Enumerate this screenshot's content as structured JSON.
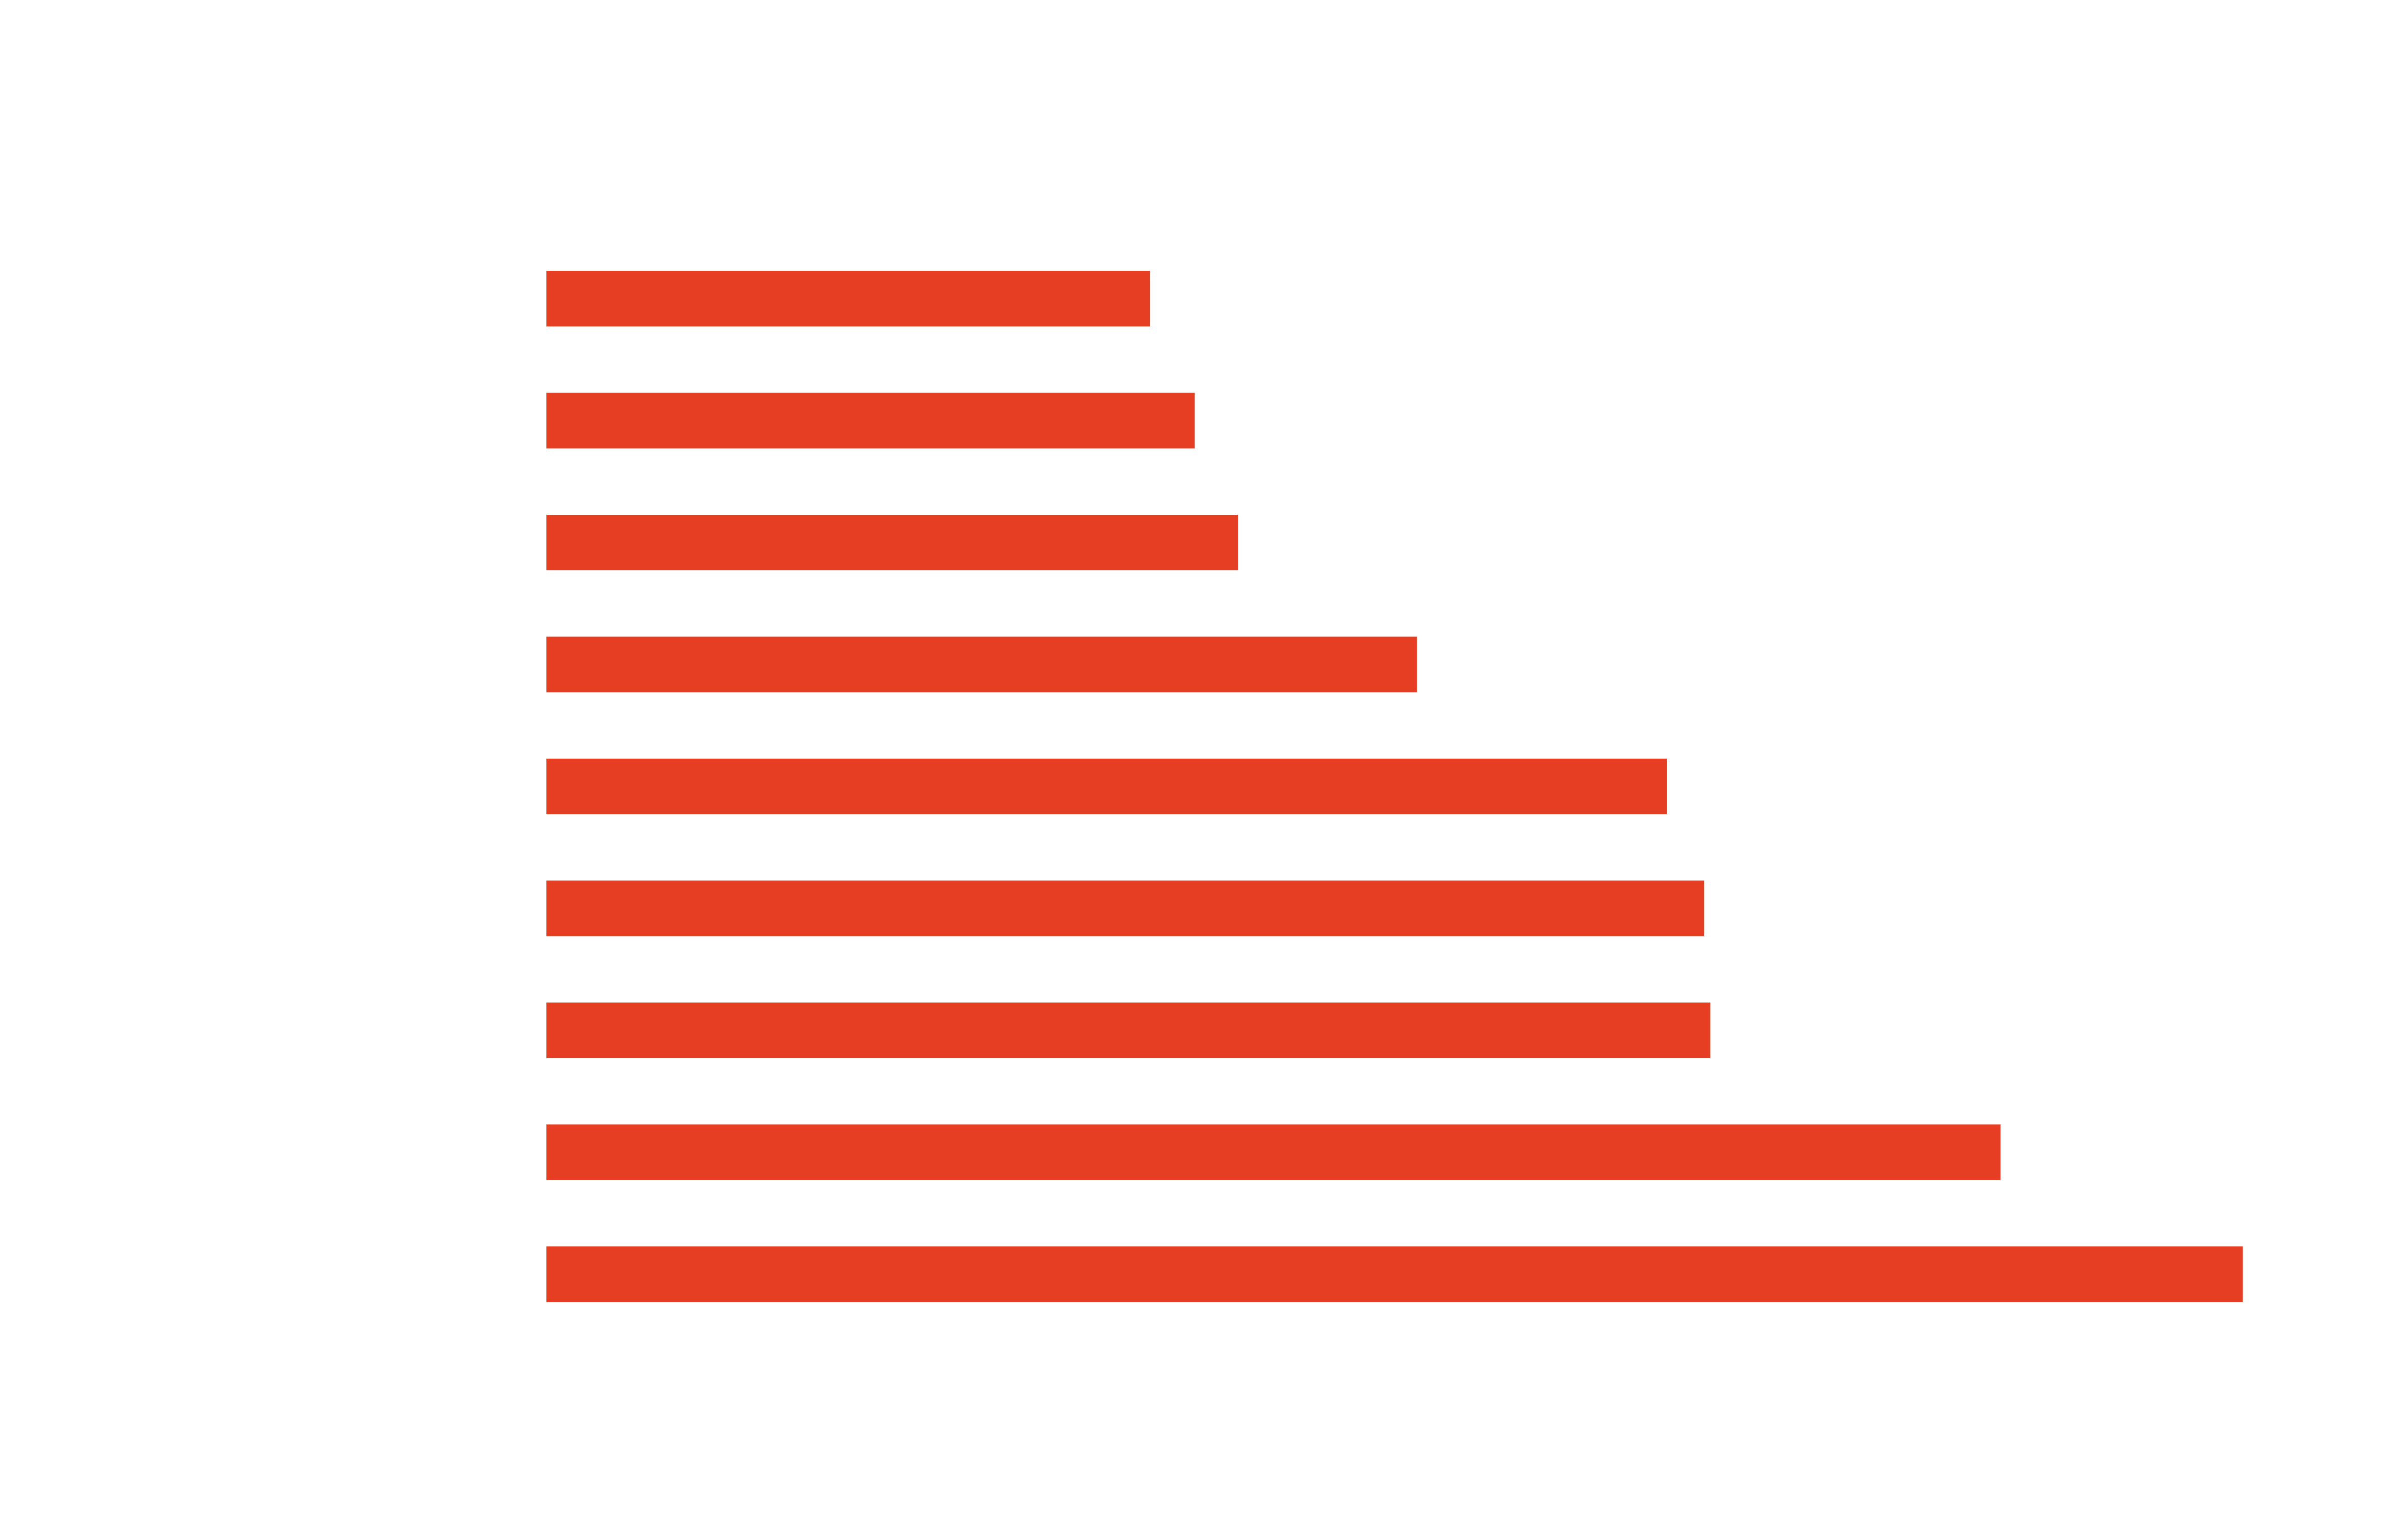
{
  "chart_data": {
    "type": "barh",
    "categories": [
      null,
      null,
      null,
      null,
      null,
      null,
      null,
      null,
      null
    ],
    "values": [
      391,
      420,
      448,
      564,
      726,
      750,
      754,
      942,
      1099
    ],
    "color": "#e53e22",
    "xlim": [
      0,
      1100
    ]
  }
}
